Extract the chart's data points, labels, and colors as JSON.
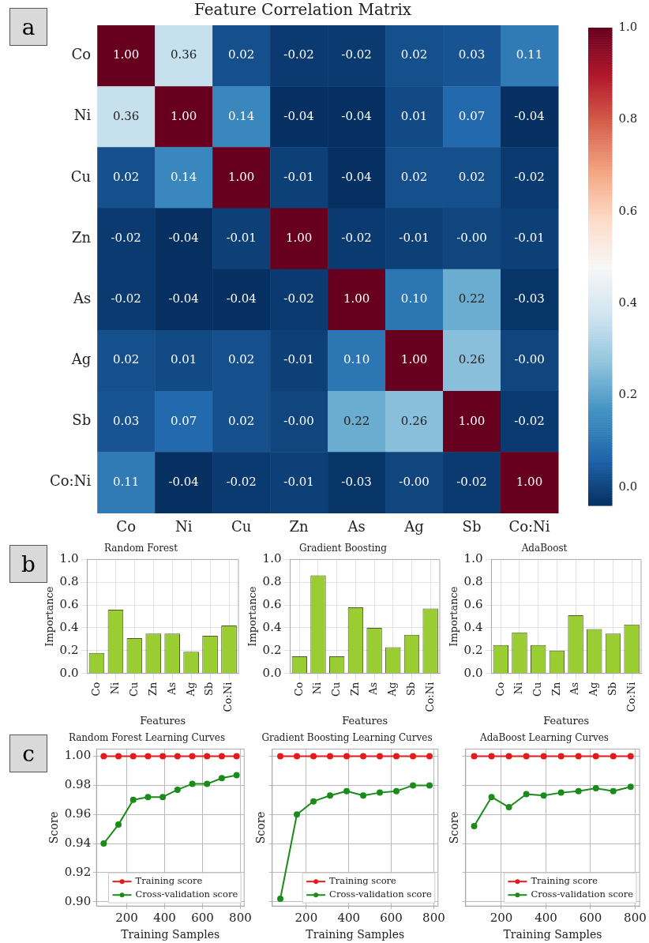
{
  "chart_data": [
    {
      "type": "heatmap",
      "title": "Feature Correlation Matrix",
      "annotations": [
        "a"
      ],
      "categories": [
        "Co",
        "Ni",
        "Cu",
        "Zn",
        "As",
        "Ag",
        "Sb",
        "Co:Ni"
      ],
      "y_categories": [
        "Co",
        "Ni",
        "Cu",
        "Zn",
        "As",
        "Ag",
        "Sb",
        "Co:Ni"
      ],
      "cells": [
        [
          1.0,
          0.36,
          0.02,
          -0.02,
          -0.02,
          0.02,
          0.03,
          0.11
        ],
        [
          0.36,
          1.0,
          0.14,
          -0.04,
          -0.04,
          0.01,
          0.07,
          -0.04
        ],
        [
          0.02,
          0.14,
          1.0,
          -0.01,
          -0.04,
          0.02,
          0.02,
          -0.02
        ],
        [
          -0.02,
          -0.04,
          -0.01,
          1.0,
          -0.02,
          -0.01,
          0,
          -0.01
        ],
        [
          -0.02,
          -0.04,
          -0.04,
          -0.02,
          1.0,
          0.1,
          0.22,
          -0.03
        ],
        [
          0.02,
          0.01,
          0.02,
          -0.01,
          0.1,
          1.0,
          0.26,
          0
        ],
        [
          0.03,
          0.07,
          0.02,
          0,
          0.22,
          0.26,
          1.0,
          -0.02
        ],
        [
          0.11,
          -0.04,
          -0.02,
          -0.01,
          -0.03,
          0,
          -0.02,
          1.0
        ]
      ],
      "cell_labels": [
        [
          "1.00",
          "0.36",
          "0.02",
          "-0.02",
          "-0.02",
          "0.02",
          "0.03",
          "0.11"
        ],
        [
          "0.36",
          "1.00",
          "0.14",
          "-0.04",
          "-0.04",
          "0.01",
          "0.07",
          "-0.04"
        ],
        [
          "0.02",
          "0.14",
          "1.00",
          "-0.01",
          "-0.04",
          "0.02",
          "0.02",
          "-0.02"
        ],
        [
          "-0.02",
          "-0.04",
          "-0.01",
          "1.00",
          "-0.02",
          "-0.01",
          "-0.00",
          "-0.01"
        ],
        [
          "-0.02",
          "-0.04",
          "-0.04",
          "-0.02",
          "1.00",
          "0.10",
          "0.22",
          "-0.03"
        ],
        [
          "0.02",
          "0.01",
          "0.02",
          "-0.01",
          "0.10",
          "1.00",
          "0.26",
          "-0.00"
        ],
        [
          "0.03",
          "0.07",
          "0.02",
          "-0.00",
          "0.22",
          "0.26",
          "1.00",
          "-0.02"
        ],
        [
          "0.11",
          "-0.04",
          "-0.02",
          "-0.01",
          "-0.03",
          "-0.00",
          "-0.02",
          "1.00"
        ]
      ],
      "clim": [
        -0.04,
        1.0
      ],
      "cticks": [
        {
          "value": 0,
          "label": "0.0"
        },
        {
          "value": 0.2,
          "label": "0.2"
        },
        {
          "value": 0.4,
          "label": "0.4"
        },
        {
          "value": 0.6,
          "label": "0.6"
        },
        {
          "value": 0.8,
          "label": "0.8"
        },
        {
          "value": 1,
          "label": "1.0"
        }
      ]
    },
    {
      "type": "bar",
      "title": "Random Forest",
      "xlabel": "Features",
      "ylabel": "Importance",
      "annotations": [
        "b"
      ],
      "categories": [
        "Co",
        "Ni",
        "Cu",
        "Zn",
        "As",
        "Ag",
        "Sb",
        "Co:Ni"
      ],
      "values": [
        0.18,
        0.56,
        0.31,
        0.35,
        0.35,
        0.19,
        0.33,
        0.42
      ],
      "color": "#9acd32",
      "ylim": [
        0,
        1
      ],
      "yticks": [
        {
          "value": 0,
          "label": "0.0"
        },
        {
          "value": 0.2,
          "label": "0.2"
        },
        {
          "value": 0.4,
          "label": "0.4"
        },
        {
          "value": 0.6,
          "label": "0.6"
        },
        {
          "value": 0.8,
          "label": "0.8"
        },
        {
          "value": 1,
          "label": "1.0"
        }
      ],
      "grid": true
    },
    {
      "type": "bar",
      "title": "Gradient Boosting",
      "xlabel": "Features",
      "ylabel": "Importance",
      "categories": [
        "Co",
        "Ni",
        "Cu",
        "Zn",
        "As",
        "Ag",
        "Sb",
        "Co:Ni"
      ],
      "values": [
        0.15,
        0.86,
        0.15,
        0.58,
        0.4,
        0.23,
        0.34,
        0.57
      ],
      "color": "#9acd32",
      "ylim": [
        0,
        1
      ],
      "yticks": [
        {
          "value": 0,
          "label": "0.0"
        },
        {
          "value": 0.2,
          "label": "0.2"
        },
        {
          "value": 0.4,
          "label": "0.4"
        },
        {
          "value": 0.6,
          "label": "0.6"
        },
        {
          "value": 0.8,
          "label": "0.8"
        },
        {
          "value": 1,
          "label": "1.0"
        }
      ],
      "grid": true
    },
    {
      "type": "bar",
      "title": "AdaBoost",
      "xlabel": "Features",
      "ylabel": "Importance",
      "categories": [
        "Co",
        "Ni",
        "Cu",
        "Zn",
        "As",
        "Ag",
        "Sb",
        "Co:Ni"
      ],
      "values": [
        0.25,
        0.36,
        0.25,
        0.2,
        0.51,
        0.39,
        0.35,
        0.43
      ],
      "color": "#9acd32",
      "ylim": [
        0,
        1
      ],
      "yticks": [
        {
          "value": 0,
          "label": "0.0"
        },
        {
          "value": 0.2,
          "label": "0.2"
        },
        {
          "value": 0.4,
          "label": "0.4"
        },
        {
          "value": 0.6,
          "label": "0.6"
        },
        {
          "value": 0.8,
          "label": "0.8"
        },
        {
          "value": 1,
          "label": "1.0"
        }
      ],
      "grid": true
    },
    {
      "type": "line",
      "title": "Random Forest Learning Curves",
      "xlabel": "Training Samples",
      "ylabel": "Score",
      "annotations": [
        "c"
      ],
      "x": [
        78,
        156,
        234,
        312,
        390,
        468,
        546,
        624,
        702,
        780
      ],
      "series": [
        {
          "name": "Training score",
          "color": "#e41a1c",
          "values": [
            1,
            1,
            1,
            1,
            1,
            1,
            1,
            1,
            1,
            1
          ]
        },
        {
          "name": "Cross-validation score",
          "color": "#1a8c1a",
          "values": [
            0.94,
            0.953,
            0.97,
            0.972,
            0.972,
            0.977,
            0.981,
            0.981,
            0.985,
            0.987
          ]
        }
      ],
      "xlim": [
        40,
        820
      ],
      "xticks": [
        200,
        400,
        600,
        800
      ],
      "ylim": [
        0.897,
        1.005
      ],
      "yticks": [
        {
          "value": 0.9,
          "label": "0.90"
        },
        {
          "value": 0.92,
          "label": "0.92"
        },
        {
          "value": 0.94,
          "label": "0.94"
        },
        {
          "value": 0.96,
          "label": "0.96"
        },
        {
          "value": 0.98,
          "label": "0.98"
        },
        {
          "value": 1,
          "label": "1.00"
        }
      ],
      "grid": true,
      "legend": "bottom right",
      "marker": "circle"
    },
    {
      "type": "line",
      "title": "Gradient Boosting Learning Curves",
      "xlabel": "Training Samples",
      "ylabel": "Score",
      "x": [
        78,
        156,
        234,
        312,
        390,
        468,
        546,
        624,
        702,
        780
      ],
      "series": [
        {
          "name": "Training score",
          "color": "#e41a1c",
          "values": [
            1,
            1,
            1,
            1,
            1,
            1,
            1,
            1,
            1,
            1
          ]
        },
        {
          "name": "Cross-validation score",
          "color": "#1a8c1a",
          "values": [
            0.902,
            0.96,
            0.969,
            0.973,
            0.976,
            0.973,
            0.975,
            0.976,
            0.98,
            0.98
          ]
        }
      ],
      "xlim": [
        40,
        820
      ],
      "xticks": [
        200,
        400,
        600,
        800
      ],
      "ylim": [
        0.897,
        1.005
      ],
      "yticks": [
        {
          "value": 0.9,
          "label": null
        },
        {
          "value": 0.92,
          "label": null
        },
        {
          "value": 0.94,
          "label": null
        },
        {
          "value": 0.96,
          "label": null
        },
        {
          "value": 0.98,
          "label": null
        },
        {
          "value": 1,
          "label": null
        }
      ],
      "grid": true,
      "legend": "bottom right",
      "marker": "circle",
      "tick_labels": "x"
    },
    {
      "type": "line",
      "title": "AdaBoost Learning Curves",
      "xlabel": "Training Samples",
      "ylabel": "Score",
      "x": [
        78,
        156,
        234,
        312,
        390,
        468,
        546,
        624,
        702,
        780
      ],
      "series": [
        {
          "name": "Training score",
          "color": "#e41a1c",
          "values": [
            1,
            1,
            1,
            1,
            1,
            1,
            1,
            1,
            1,
            1
          ]
        },
        {
          "name": "Cross-validation score",
          "color": "#1a8c1a",
          "values": [
            0.952,
            0.972,
            0.965,
            0.974,
            0.973,
            0.975,
            0.976,
            0.978,
            0.976,
            0.979
          ]
        }
      ],
      "xlim": [
        40,
        820
      ],
      "xticks": [
        200,
        400,
        600,
        800
      ],
      "ylim": [
        0.897,
        1.005
      ],
      "yticks": [
        {
          "value": 0.9,
          "label": null
        },
        {
          "value": 0.92,
          "label": null
        },
        {
          "value": 0.94,
          "label": null
        },
        {
          "value": 0.96,
          "label": null
        },
        {
          "value": 0.98,
          "label": null
        },
        {
          "value": 1,
          "label": null
        }
      ],
      "grid": true,
      "legend": "bottom right",
      "marker": "circle",
      "tick_labels": "x"
    }
  ]
}
